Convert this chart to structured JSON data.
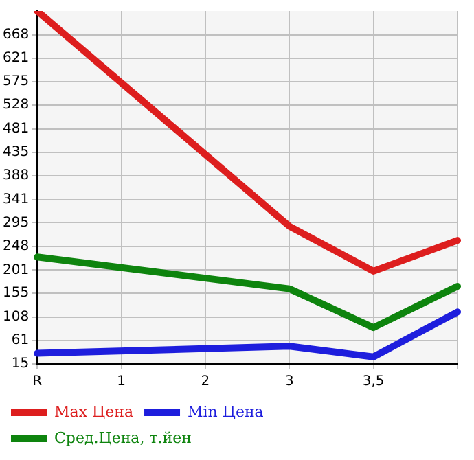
{
  "chart_data": {
    "type": "line",
    "categories": [
      "R",
      "1",
      "2",
      "3",
      "3,5",
      null
    ],
    "series": [
      {
        "name": "Max Цена",
        "color": "#dd1e1e",
        "values": [
          715,
          null,
          null,
          288,
          199,
          260
        ]
      },
      {
        "name": "Min Цена",
        "color": "#1e1edd",
        "values": [
          36,
          null,
          null,
          50,
          29,
          118
        ]
      },
      {
        "name": "Сред.Цена, т.йен",
        "color": "#0e840e",
        "values": [
          227,
          null,
          null,
          164,
          87,
          169
        ]
      }
    ],
    "ylim": [
      15,
      715
    ],
    "yticks": [
      15,
      61,
      108,
      155,
      201,
      248,
      295,
      341,
      388,
      435,
      481,
      528,
      575,
      621,
      668
    ],
    "grid": true,
    "legend": "bottom",
    "marker": "none",
    "line_style": "solid"
  }
}
